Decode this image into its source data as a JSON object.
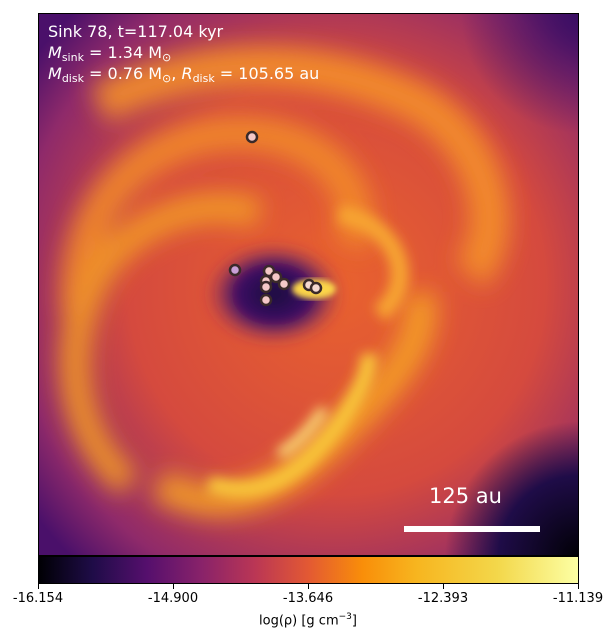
{
  "annotation": {
    "line1": "Sink 78, t=117.04 kyr",
    "msink_symbol": "M",
    "msink_sub": "sink",
    "msink_value": " = 1.34 M",
    "msink_unit_sub": "⊙",
    "mdisk_symbol": "M",
    "mdisk_sub": "disk",
    "mdisk_value": " = 0.76 M",
    "mdisk_unit_sub": "⊙",
    "rdisk_symbol": "R",
    "rdisk_sub": "disk",
    "rdisk_value": " = 105.65 au"
  },
  "scale_bar": {
    "label": "125 au",
    "length_au": 125
  },
  "colorbar": {
    "ticks": [
      "-16.154",
      "-14.900",
      "-13.646",
      "-12.393",
      "-11.139"
    ],
    "label_main": "log(ρ) [g cm",
    "label_sup": "−3",
    "label_end": "]",
    "colormap": "inferno"
  },
  "sinks": [
    {
      "name": "sink-particle",
      "color": "#f4c8c8"
    },
    {
      "name": "sink-particle",
      "color": "#c9a0d8"
    },
    {
      "name": "sink-particle",
      "color": "#f4c8c8"
    },
    {
      "name": "sink-particle",
      "color": "#f4c8c8"
    },
    {
      "name": "sink-particle",
      "color": "#f4c8c8"
    },
    {
      "name": "sink-particle",
      "color": "#f4c8c8"
    },
    {
      "name": "sink-particle",
      "color": "#f4c8c8"
    },
    {
      "name": "sink-particle",
      "color": "#f4c8c8"
    },
    {
      "name": "sink-particle",
      "color": "#f4d8d0"
    },
    {
      "name": "sink-particle",
      "color": "#f4d8d0"
    }
  ]
}
